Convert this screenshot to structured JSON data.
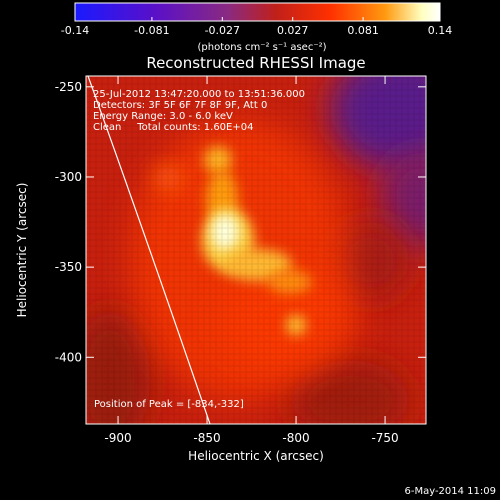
{
  "chart_data": {
    "type": "heatmap",
    "title": "Reconstructed RHESSI Image",
    "xlabel": "Heliocentric X (arcsec)",
    "ylabel": "Heliocentric Y (arcsec)",
    "xlim": [
      -918,
      -727
    ],
    "ylim": [
      -437,
      -244
    ],
    "xticks": [
      -900,
      -850,
      -800,
      -750
    ],
    "yticks": [
      -250,
      -300,
      -350,
      -400
    ],
    "xtick_labels": [
      "-900",
      "-850",
      "-800",
      "-750"
    ],
    "ytick_labels": [
      "-250",
      "-300",
      "-350",
      "-400"
    ],
    "colorbar": {
      "min": -0.14,
      "max": 0.14,
      "ticks": [
        -0.14,
        -0.081,
        -0.027,
        0.027,
        0.081,
        0.14
      ],
      "tick_labels": [
        "-0.14",
        "-0.081",
        "-0.027",
        "0.027",
        "0.081",
        "0.14"
      ],
      "unit_label": "(photons cm⁻² s⁻¹ asec⁻²)",
      "colors": [
        "#1a1aff",
        "#5a10c8",
        "#8a2a80",
        "#c0201a",
        "#ff3000",
        "#ff9a10",
        "#ffffc0",
        "#ffffff"
      ]
    },
    "annotations": [
      "25-Jul-2012 13:47:20.000 to 13:51:36.000",
      "Detectors: 3F 5F 6F 7F 8F 9F, Att 0",
      "Energy Range: 3.0 - 6.0 keV",
      "Clean     Total counts: 1.60E+04"
    ],
    "peak_label": "Position of Peak = [-834,-332]",
    "peak": [
      -834,
      -332
    ],
    "sources": [
      {
        "x": -834,
        "y": -332,
        "intensity": 0.14
      },
      {
        "x": -838,
        "y": -290,
        "intensity": 0.1
      },
      {
        "x": -820,
        "y": -350,
        "intensity": 0.09
      },
      {
        "x": -798,
        "y": -382,
        "intensity": 0.08
      }
    ]
  },
  "footer_date": "6-May-2014 11:09"
}
